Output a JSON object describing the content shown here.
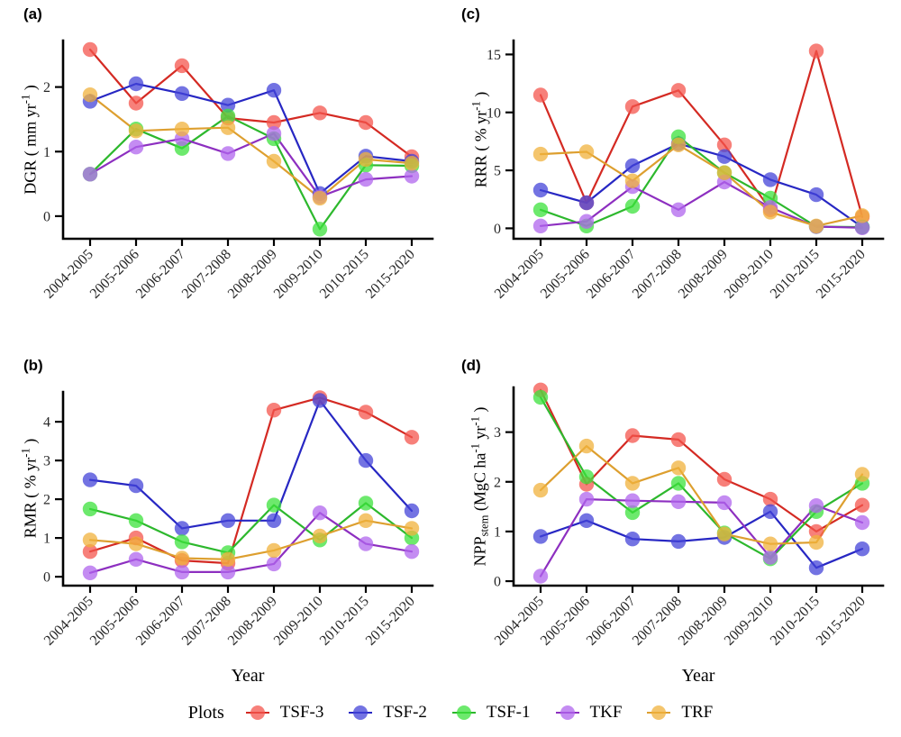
{
  "legend": {
    "title": "Plots",
    "entries": [
      "TSF-3",
      "TSF-2",
      "TSF-1",
      "TKF",
      "TRF"
    ]
  },
  "colors": {
    "TSF-3": {
      "line": "#d42a23",
      "point": "#f4564e"
    },
    "TSF-2": {
      "line": "#2727c3",
      "point": "#4444d8"
    },
    "TSF-1": {
      "line": "#2db82d",
      "point": "#3ce23c"
    },
    "TKF": {
      "line": "#8d2fc0",
      "point": "#b066ee"
    },
    "TRF": {
      "line": "#dd9f2f",
      "point": "#f0b13c"
    }
  },
  "point_opacity": 0.75,
  "axis_color": "#000000",
  "tick_text_color": "#262626",
  "chart_data": [
    {
      "id": "a",
      "panel_label": "(a)",
      "type": "line",
      "ylabel": "DGR ( mm yr-1 )",
      "ylabel_parts": [
        {
          "t": "DGR ( mm yr",
          "s": "n"
        },
        {
          "t": "-1",
          "s": "sup"
        },
        {
          "t": " )",
          "s": "n"
        }
      ],
      "xlabel": "",
      "categories": [
        "2004-2005",
        "2005-2006",
        "2006-2007",
        "2007-2008",
        "2008-2009",
        "2009-2010",
        "2010-2015",
        "2015-2020"
      ],
      "yticks": [
        0,
        1,
        2
      ],
      "ylim": [
        -0.35,
        2.72
      ],
      "grid": false,
      "series": [
        {
          "name": "TSF-3",
          "values": [
            2.58,
            1.75,
            2.33,
            1.52,
            1.45,
            1.6,
            1.45,
            0.92
          ]
        },
        {
          "name": "TSF-2",
          "values": [
            1.78,
            2.05,
            1.9,
            1.72,
            1.95,
            0.35,
            0.93,
            0.85
          ]
        },
        {
          "name": "TSF-1",
          "values": [
            0.65,
            1.35,
            1.05,
            1.55,
            1.2,
            -0.2,
            0.79,
            0.78
          ]
        },
        {
          "name": "TKF",
          "values": [
            0.65,
            1.07,
            1.2,
            0.97,
            1.28,
            0.3,
            0.57,
            0.62
          ]
        },
        {
          "name": "TRF",
          "values": [
            1.88,
            1.32,
            1.35,
            1.37,
            0.85,
            0.28,
            0.88,
            0.82
          ]
        }
      ]
    },
    {
      "id": "b",
      "panel_label": "(b)",
      "type": "line",
      "ylabel": "RMR ( % yr-1 )",
      "ylabel_parts": [
        {
          "t": "RMR ( % yr",
          "s": "n"
        },
        {
          "t": "-1",
          "s": "sup"
        },
        {
          "t": " )",
          "s": "n"
        }
      ],
      "xlabel": "Year",
      "categories": [
        "2004-2005",
        "2005-2006",
        "2006-2007",
        "2007-2008",
        "2008-2009",
        "2009-2010",
        "2010-2015",
        "2015-2020"
      ],
      "yticks": [
        0,
        1,
        2,
        3,
        4
      ],
      "ylim": [
        -0.23,
        4.77
      ],
      "grid": false,
      "series": [
        {
          "name": "TSF-3",
          "values": [
            0.65,
            1.0,
            0.42,
            0.35,
            4.3,
            4.62,
            4.25,
            3.6
          ]
        },
        {
          "name": "TSF-2",
          "values": [
            2.5,
            2.35,
            1.25,
            1.45,
            1.45,
            4.55,
            3.0,
            1.7
          ]
        },
        {
          "name": "TSF-1",
          "values": [
            1.75,
            1.45,
            0.9,
            0.62,
            1.85,
            0.95,
            1.9,
            1.0
          ]
        },
        {
          "name": "TKF",
          "values": [
            0.1,
            0.45,
            0.12,
            0.12,
            0.33,
            1.65,
            0.85,
            0.65
          ]
        },
        {
          "name": "TRF",
          "values": [
            0.95,
            0.85,
            0.48,
            0.45,
            0.68,
            1.05,
            1.45,
            1.25
          ]
        }
      ]
    },
    {
      "id": "c",
      "panel_label": "(c)",
      "type": "line",
      "ylabel": "RRR ( % yr-1 )",
      "ylabel_parts": [
        {
          "t": "RRR ( % yr",
          "s": "n"
        },
        {
          "t": "-1",
          "s": "sup"
        },
        {
          "t": " )",
          "s": "n"
        }
      ],
      "xlabel": "",
      "categories": [
        "2004-2005",
        "2005-2006",
        "2006-2007",
        "2007-2008",
        "2008-2009",
        "2009-2010",
        "2010-2015",
        "2015-2020"
      ],
      "yticks": [
        0,
        5,
        10,
        15
      ],
      "ylim": [
        -0.9,
        16.2
      ],
      "grid": false,
      "series": [
        {
          "name": "TSF-3",
          "values": [
            11.5,
            2.2,
            10.5,
            11.9,
            7.2,
            1.6,
            15.3,
            1.0
          ]
        },
        {
          "name": "TSF-2",
          "values": [
            3.3,
            2.2,
            5.4,
            7.3,
            6.2,
            4.2,
            2.9,
            0.1
          ]
        },
        {
          "name": "TSF-1",
          "values": [
            1.6,
            0.2,
            1.9,
            7.9,
            4.8,
            2.6,
            0.15,
            0.1
          ]
        },
        {
          "name": "TKF",
          "values": [
            0.2,
            0.6,
            3.6,
            1.6,
            4.0,
            1.8,
            0.15,
            0.05
          ]
        },
        {
          "name": "TRF",
          "values": [
            6.4,
            6.6,
            4.1,
            7.2,
            4.8,
            1.4,
            0.2,
            1.1
          ]
        }
      ]
    },
    {
      "id": "d",
      "panel_label": "(d)",
      "type": "line",
      "ylabel": "NPPstem (MgC ha-1 yr-1 )",
      "ylabel_parts": [
        {
          "t": "NPP",
          "s": "n"
        },
        {
          "t": "stem",
          "s": "sub"
        },
        {
          "t": " (MgC ha",
          "s": "n"
        },
        {
          "t": "-1",
          "s": "sup"
        },
        {
          "t": " yr",
          "s": "n"
        },
        {
          "t": "-1",
          "s": "sup"
        },
        {
          "t": " )",
          "s": "n"
        }
      ],
      "xlabel": "Year",
      "categories": [
        "2004-2005",
        "2005-2006",
        "2006-2007",
        "2007-2008",
        "2008-2009",
        "2009-2010",
        "2010-2015",
        "2015-2020"
      ],
      "yticks": [
        0,
        1,
        2,
        3
      ],
      "ylim": [
        -0.09,
        3.9
      ],
      "grid": false,
      "series": [
        {
          "name": "TSF-3",
          "values": [
            3.85,
            1.95,
            2.93,
            2.85,
            2.05,
            1.65,
            1.0,
            1.53
          ]
        },
        {
          "name": "TSF-2",
          "values": [
            0.9,
            1.22,
            0.85,
            0.8,
            0.88,
            1.4,
            0.27,
            0.65
          ]
        },
        {
          "name": "TSF-1",
          "values": [
            3.7,
            2.1,
            1.38,
            1.97,
            0.97,
            0.45,
            1.4,
            1.97
          ]
        },
        {
          "name": "TKF",
          "values": [
            0.1,
            1.65,
            1.62,
            1.6,
            1.58,
            0.48,
            1.52,
            1.18
          ]
        },
        {
          "name": "TRF",
          "values": [
            1.83,
            2.72,
            1.97,
            2.28,
            0.95,
            0.75,
            0.78,
            2.15
          ]
        }
      ]
    }
  ]
}
